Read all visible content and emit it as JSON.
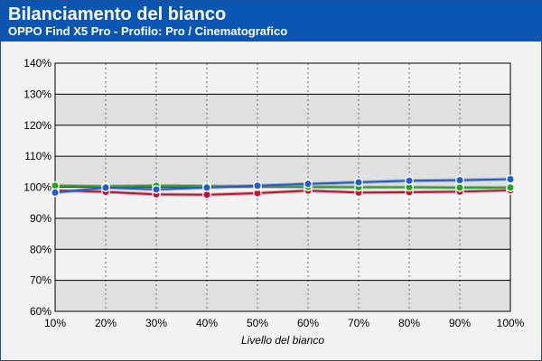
{
  "header": {
    "title": "Bilanciamento del bianco",
    "subtitle": "OPPO Find X5 Pro - Profilo: Pro / Cinematografico"
  },
  "colors": {
    "header_bg": "#0a56b5",
    "band_dark": "#e0e0e0",
    "band_light": "#f2f2f2",
    "red": "#c8102e",
    "green": "#22a61f",
    "blue": "#1f5bd1"
  },
  "chart_data": {
    "type": "line",
    "title": "Bilanciamento del bianco",
    "subtitle": "OPPO Find X5 Pro - Profilo: Pro / Cinematografico",
    "xlabel": "Livello del bianco",
    "ylabel": "",
    "categories": [
      "10%",
      "20%",
      "30%",
      "40%",
      "50%",
      "60%",
      "70%",
      "80%",
      "90%",
      "100%"
    ],
    "y_ticks": [
      "60%",
      "70%",
      "80%",
      "90%",
      "100%",
      "110%",
      "120%",
      "130%",
      "140%"
    ],
    "ylim": [
      60,
      140
    ],
    "grid": true,
    "legend": "none",
    "series": [
      {
        "color": "red",
        "values": [
          99,
          98.5,
          97.7,
          97.6,
          98.1,
          98.9,
          98.3,
          98.4,
          98.6,
          99
        ]
      },
      {
        "color": "green",
        "values": [
          100.5,
          100.3,
          100.5,
          100.4,
          100.2,
          100.1,
          100,
          100,
          99.9,
          99.9
        ]
      },
      {
        "color": "blue",
        "values": [
          98.3,
          99.9,
          99.3,
          99.9,
          100.5,
          101.1,
          101.6,
          102.1,
          102.3,
          102.6
        ]
      }
    ]
  }
}
